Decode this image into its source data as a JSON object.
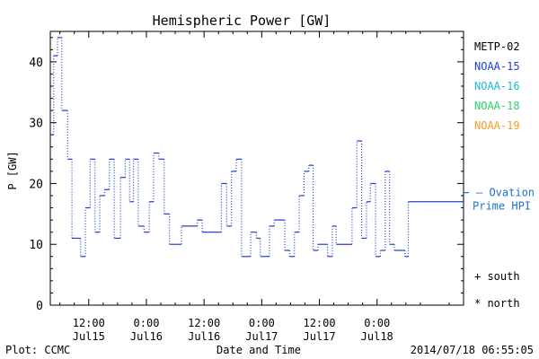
{
  "chart_data": {
    "type": "line",
    "title": "Hemispheric Power [GW]",
    "ylabel": "P [GW]",
    "xlabel": "Date and Time",
    "ylim": [
      0,
      45
    ],
    "xlim_hours": [
      4,
      90
    ],
    "y_ticks": [
      0,
      10,
      20,
      30,
      40
    ],
    "x_ticks": [
      {
        "hour": 12,
        "time": "12:00",
        "date": "Jul15"
      },
      {
        "hour": 24,
        "time": "0:00",
        "date": "Jul16"
      },
      {
        "hour": 36,
        "time": "12:00",
        "date": "Jul16"
      },
      {
        "hour": 48,
        "time": "0:00",
        "date": "Jul17"
      },
      {
        "hour": 60,
        "time": "12:00",
        "date": "Jul17"
      },
      {
        "hour": 72,
        "time": "0:00",
        "date": "Jul18"
      }
    ],
    "grid": false,
    "legend": [
      "METP-02",
      "NOAA-15",
      "NOAA-16",
      "NOAA-18",
      "NOAA-19"
    ],
    "series": [
      {
        "name": "NOAA-15",
        "color": "#1f3fd6",
        "x": [
          4.0,
          4.7,
          5.5,
          6.4,
          7.6,
          8.5,
          10.3,
          11.3,
          12.3,
          13.3,
          14.3,
          15.3,
          16.3,
          17.3,
          18.6,
          19.6,
          20.5,
          21.3,
          22.3,
          23.5,
          24.6,
          25.5,
          26.6,
          27.7,
          28.8,
          29.7,
          31.3,
          34.6,
          35.6,
          37.6,
          39.6,
          40.7,
          41.7,
          42.7,
          43.8,
          45.7,
          46.9,
          47.7,
          48.8,
          49.6,
          50.6,
          52.8,
          53.8,
          54.8,
          55.8,
          56.8,
          57.8,
          58.7,
          59.7,
          61.7,
          62.7,
          63.5,
          66.8,
          67.8,
          68.8,
          69.8,
          70.6,
          71.7,
          72.7,
          73.7,
          74.6,
          75.6,
          77.8,
          78.5
        ],
        "y": [
          28,
          41,
          44,
          32,
          24,
          11,
          8,
          16,
          24,
          12,
          18,
          19,
          24,
          11,
          21,
          24,
          17,
          24,
          13,
          12,
          17,
          25,
          24,
          15,
          10,
          10,
          13,
          14,
          12,
          12,
          20,
          13,
          22,
          24,
          8,
          12,
          11,
          8,
          8,
          13,
          14,
          9,
          8,
          12,
          18,
          22,
          23,
          9,
          10,
          8,
          13,
          10,
          16,
          27,
          11,
          17,
          20,
          8,
          9,
          22,
          10,
          9,
          8,
          17
        ]
      },
      {
        "name": "Ovation Prime HPI",
        "color": "#1f6fd6",
        "x": [
          78.9,
          80.0
        ],
        "y": [
          18.5,
          18.5
        ]
      }
    ],
    "side_legend": {
      "dash": "—",
      "label_line1": "Ovation",
      "label_line2": "Prime HPI"
    },
    "markers": [
      "+ south",
      "* north"
    ]
  },
  "footer": {
    "left": "Plot: CCMC",
    "center": "Date and Time",
    "right": "2014/07/18 06:55:05"
  },
  "colors": {
    "METP-02": "#000000",
    "NOAA-15": "#1f3fd6",
    "NOAA-16": "#20b8d8",
    "NOAA-18": "#2ecf6a",
    "NOAA-19": "#f0a020",
    "axis": "#000000",
    "ovation": "#1f6fd6"
  }
}
